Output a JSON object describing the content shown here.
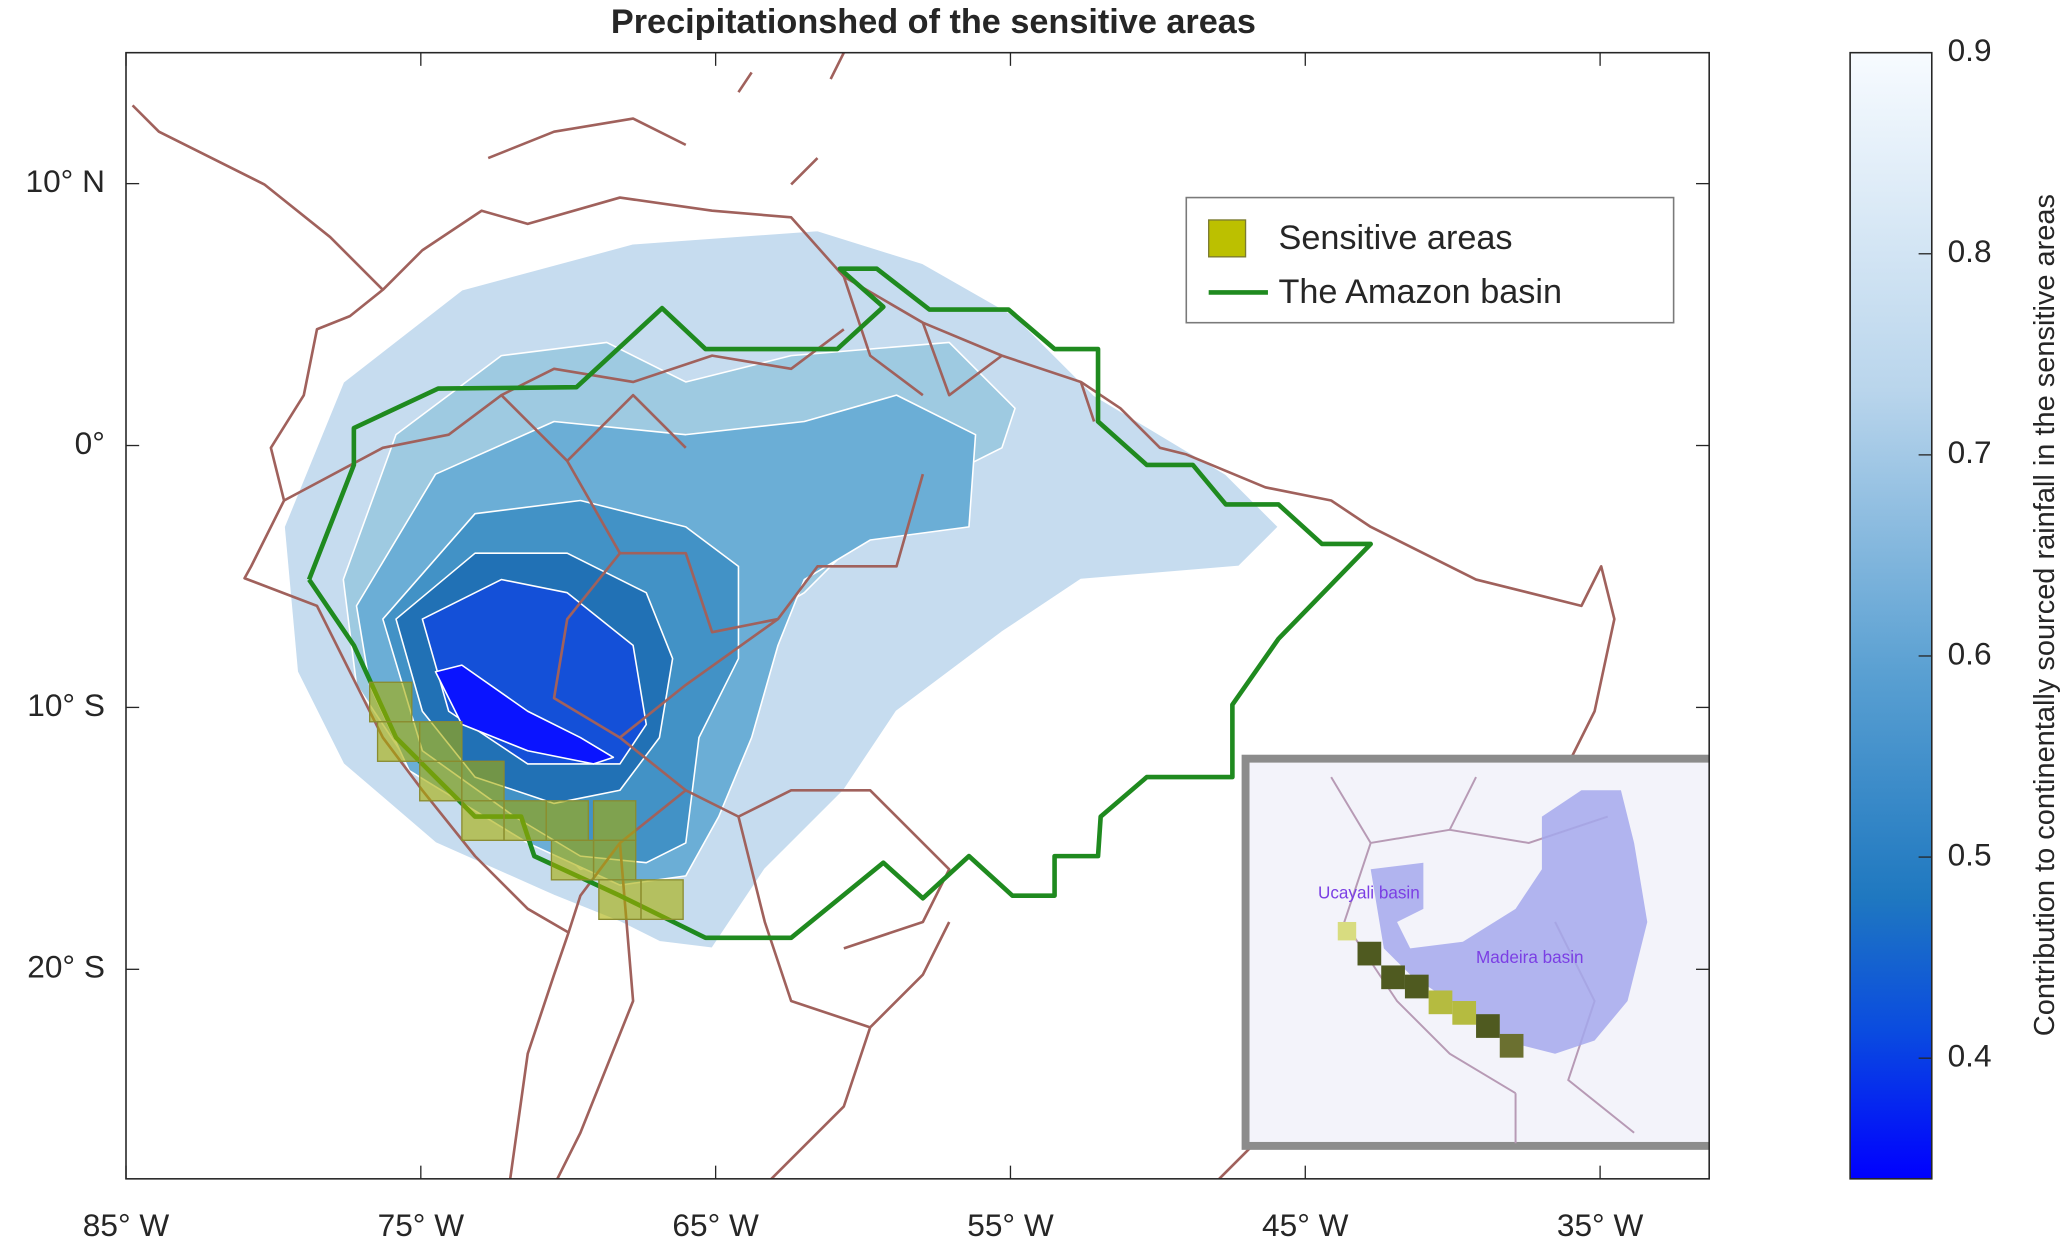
{
  "chart_data": {
    "type": "contour-map",
    "title": "Precipitationshed of the sensitive areas",
    "xlim": [
      -85,
      -31.3
    ],
    "ylim": [
      -28,
      15
    ],
    "xticks": [
      {
        "value": -85,
        "label": "85° W"
      },
      {
        "value": -75,
        "label": "75° W"
      },
      {
        "value": -65,
        "label": "65° W"
      },
      {
        "value": -55,
        "label": "55° W"
      },
      {
        "value": -45,
        "label": "45° W"
      },
      {
        "value": -35,
        "label": "35° W"
      }
    ],
    "yticks": [
      {
        "value": 10,
        "label": "10° N"
      },
      {
        "value": 0,
        "label": "0°"
      },
      {
        "value": -10,
        "label": "10° S"
      },
      {
        "value": -20,
        "label": "20° S"
      }
    ],
    "legend": [
      "Sensitive areas",
      "The Amazon basin"
    ],
    "colorbar": {
      "label": "Contribution to continentally sourced rainfall in the sensitive areas",
      "clim": [
        0.34,
        0.9
      ],
      "ticks": [
        0.4,
        0.5,
        0.6,
        0.7,
        0.8,
        0.9
      ]
    },
    "inset": {
      "labels": [
        "Ucayali basin",
        "Madeira basin"
      ]
    }
  }
}
